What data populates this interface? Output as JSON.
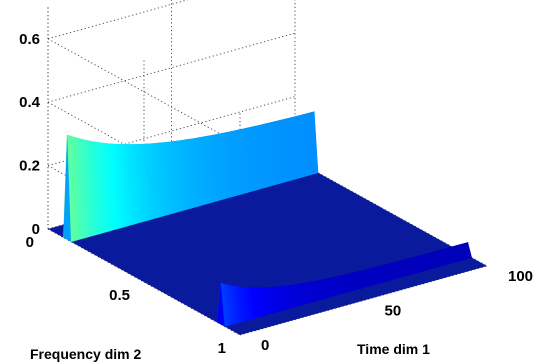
{
  "chart_data": {
    "type": "surface",
    "xlabel": "Time dim 1",
    "ylabel": "Frequency dim 2",
    "zlabel": "",
    "xlim": [
      0,
      100
    ],
    "ylim": [
      0,
      1
    ],
    "zlim": [
      0,
      0.7
    ],
    "xticks": [
      0,
      50,
      100
    ],
    "yticks": [
      0,
      0.5,
      1
    ],
    "zticks": [
      0,
      0.2,
      0.4,
      0.6
    ],
    "xtick_labels": [
      "0",
      "50",
      "100"
    ],
    "ytick_labels": [
      "0",
      "0.5",
      "1"
    ],
    "ztick_labels": [
      "0",
      "0.2",
      "0.4",
      "0.6"
    ],
    "grid": true,
    "colormap": "jet",
    "baseline_color": "#0a1a9c",
    "ridges": [
      {
        "frequency": 0.1,
        "peak_time": 0,
        "peak_height": 0.33,
        "tail_height": 0.18,
        "decay_time": 30
      },
      {
        "frequency": 0.9,
        "peak_time": 0,
        "peak_height": 0.13,
        "tail_height": 0.04,
        "decay_time": 20
      }
    ]
  }
}
